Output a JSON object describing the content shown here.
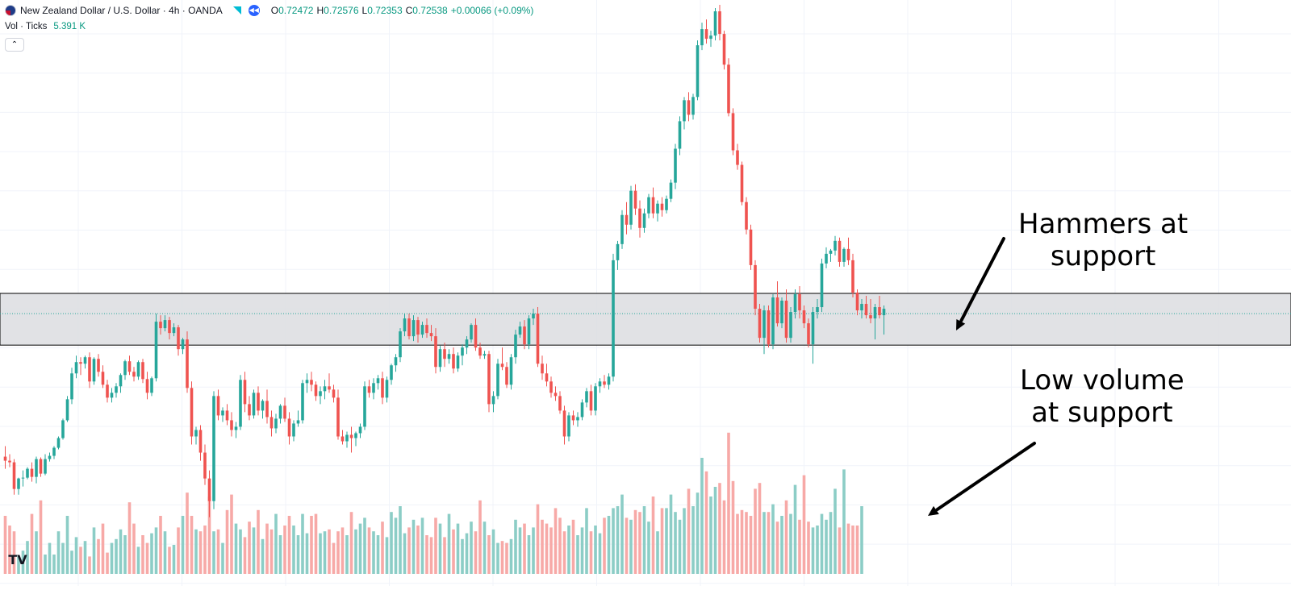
{
  "header": {
    "symbol": "New Zealand Dollar / U.S. Dollar · 4h · OANDA",
    "ohlc": [
      {
        "k": "O",
        "v": "0.72472"
      },
      {
        "k": "H",
        "v": "0.72576"
      },
      {
        "k": "L",
        "v": "0.72353"
      },
      {
        "k": "C",
        "v": "0.72538"
      }
    ],
    "change": "+0.00066 (+0.09%)",
    "volume_label": "Vol · Ticks",
    "volume_value": "5.391 K",
    "collapse_glyph": "⌃",
    "logo_text": "TV"
  },
  "annotations": {
    "hammers": [
      "Hammers at",
      "support"
    ],
    "low_volume": [
      "Low volume",
      "at support"
    ]
  },
  "colors": {
    "up": "#26a69a",
    "down": "#ef5350",
    "volume_up": "#8ccdc6",
    "volume_down": "#f7a9a7",
    "zone_fill": "#dcdde0",
    "grid": "#f0f3fa"
  },
  "chart_data": {
    "type": "candlestick",
    "title": "New Zealand Dollar / U.S. Dollar · 4h · OANDA",
    "support_zone": [
      0.7163,
      0.7227
    ],
    "support_midline": 0.7202,
    "ylim": [
      0.6865,
      0.759
    ],
    "candles": [
      [
        0.7025,
        0.7038,
        0.701,
        0.702
      ],
      [
        0.702,
        0.7028,
        0.7012,
        0.7018
      ],
      [
        0.7018,
        0.7022,
        0.6978,
        0.6985
      ],
      [
        0.6985,
        0.6999,
        0.6978,
        0.6998
      ],
      [
        0.6998,
        0.7008,
        0.6988,
        0.6999
      ],
      [
        0.6999,
        0.7012,
        0.6997,
        0.701
      ],
      [
        0.701,
        0.7018,
        0.6994,
        0.7
      ],
      [
        0.7,
        0.7025,
        0.6992,
        0.7022
      ],
      [
        0.7022,
        0.7024,
        0.7,
        0.7004
      ],
      [
        0.7004,
        0.7028,
        0.7002,
        0.7022
      ],
      [
        0.7022,
        0.703,
        0.7019,
        0.7026
      ],
      [
        0.7026,
        0.7038,
        0.7022,
        0.7036
      ],
      [
        0.7036,
        0.705,
        0.7034,
        0.7048
      ],
      [
        0.7048,
        0.7072,
        0.7046,
        0.707
      ],
      [
        0.707,
        0.71,
        0.7068,
        0.7096
      ],
      [
        0.7096,
        0.7135,
        0.709,
        0.7128
      ],
      [
        0.7128,
        0.715,
        0.7122,
        0.7142
      ],
      [
        0.7142,
        0.7148,
        0.7126,
        0.714
      ],
      [
        0.714,
        0.715,
        0.7134,
        0.7148
      ],
      [
        0.7148,
        0.7154,
        0.711,
        0.7118
      ],
      [
        0.7118,
        0.7148,
        0.7114,
        0.7146
      ],
      [
        0.7146,
        0.7152,
        0.7124,
        0.713
      ],
      [
        0.713,
        0.7138,
        0.711,
        0.7114
      ],
      [
        0.7114,
        0.712,
        0.7092,
        0.7098
      ],
      [
        0.7098,
        0.711,
        0.7092,
        0.7104
      ],
      [
        0.7104,
        0.7116,
        0.7098,
        0.7112
      ],
      [
        0.7112,
        0.7128,
        0.7104,
        0.7126
      ],
      [
        0.7126,
        0.7145,
        0.712,
        0.7143
      ],
      [
        0.7143,
        0.715,
        0.7126,
        0.713
      ],
      [
        0.713,
        0.7136,
        0.7118,
        0.7124
      ],
      [
        0.7124,
        0.7144,
        0.712,
        0.7142
      ],
      [
        0.7142,
        0.7146,
        0.7116,
        0.7121
      ],
      [
        0.7121,
        0.713,
        0.7096,
        0.7104
      ],
      [
        0.7104,
        0.7124,
        0.71,
        0.7122
      ],
      [
        0.7122,
        0.7202,
        0.7118,
        0.7192
      ],
      [
        0.7192,
        0.72,
        0.7176,
        0.7184
      ],
      [
        0.7184,
        0.72,
        0.718,
        0.7194
      ],
      [
        0.7194,
        0.7198,
        0.717,
        0.7178
      ],
      [
        0.7178,
        0.719,
        0.7174,
        0.7185
      ],
      [
        0.7185,
        0.7188,
        0.715,
        0.7158
      ],
      [
        0.7158,
        0.7172,
        0.7152,
        0.717
      ],
      [
        0.717,
        0.718,
        0.7104,
        0.711
      ],
      [
        0.711,
        0.7118,
        0.704,
        0.705
      ],
      [
        0.705,
        0.7062,
        0.704,
        0.7058
      ],
      [
        0.7058,
        0.7064,
        0.702,
        0.703
      ],
      [
        0.703,
        0.704,
        0.699,
        0.6998
      ],
      [
        0.6998,
        0.7008,
        0.695,
        0.697
      ],
      [
        0.697,
        0.7106,
        0.696,
        0.71
      ],
      [
        0.71,
        0.7108,
        0.707,
        0.7076
      ],
      [
        0.7076,
        0.7086,
        0.7068,
        0.7082
      ],
      [
        0.7082,
        0.709,
        0.7064,
        0.707
      ],
      [
        0.707,
        0.708,
        0.705,
        0.7058
      ],
      [
        0.7058,
        0.7068,
        0.7048,
        0.7062
      ],
      [
        0.7062,
        0.7126,
        0.7058,
        0.712
      ],
      [
        0.712,
        0.713,
        0.708,
        0.709
      ],
      [
        0.709,
        0.71,
        0.707,
        0.7076
      ],
      [
        0.7076,
        0.7108,
        0.7072,
        0.7104
      ],
      [
        0.7104,
        0.7112,
        0.7076,
        0.7082
      ],
      [
        0.7082,
        0.7096,
        0.7072,
        0.7094
      ],
      [
        0.7094,
        0.7108,
        0.7066,
        0.7074
      ],
      [
        0.7074,
        0.7082,
        0.705,
        0.706
      ],
      [
        0.706,
        0.7078,
        0.7054,
        0.7072
      ],
      [
        0.7072,
        0.709,
        0.7066,
        0.7088
      ],
      [
        0.7088,
        0.7098,
        0.7068,
        0.7072
      ],
      [
        0.7072,
        0.708,
        0.704,
        0.705
      ],
      [
        0.705,
        0.707,
        0.7044,
        0.7066
      ],
      [
        0.7066,
        0.7082,
        0.7062,
        0.707
      ],
      [
        0.707,
        0.712,
        0.7066,
        0.7116
      ],
      [
        0.7116,
        0.7128,
        0.7104,
        0.712
      ],
      [
        0.712,
        0.713,
        0.7106,
        0.7114
      ],
      [
        0.7114,
        0.7118,
        0.7094,
        0.71
      ],
      [
        0.71,
        0.7112,
        0.709,
        0.7106
      ],
      [
        0.7106,
        0.712,
        0.7096,
        0.7112
      ],
      [
        0.7112,
        0.7128,
        0.7104,
        0.7108
      ],
      [
        0.7108,
        0.7114,
        0.7092,
        0.7098
      ],
      [
        0.7098,
        0.7108,
        0.7046,
        0.705
      ],
      [
        0.705,
        0.7058,
        0.704,
        0.7044
      ],
      [
        0.7044,
        0.7056,
        0.7036,
        0.7052
      ],
      [
        0.7052,
        0.7062,
        0.703,
        0.7048
      ],
      [
        0.7048,
        0.7056,
        0.7038,
        0.7054
      ],
      [
        0.7054,
        0.7066,
        0.7048,
        0.7062
      ],
      [
        0.7062,
        0.7118,
        0.7058,
        0.7112
      ],
      [
        0.7112,
        0.712,
        0.7098,
        0.7104
      ],
      [
        0.7104,
        0.7122,
        0.7096,
        0.7116
      ],
      [
        0.7116,
        0.7126,
        0.7108,
        0.7122
      ],
      [
        0.7122,
        0.713,
        0.709,
        0.7098
      ],
      [
        0.7098,
        0.7124,
        0.7092,
        0.712
      ],
      [
        0.712,
        0.714,
        0.7114,
        0.7138
      ],
      [
        0.7138,
        0.7152,
        0.713,
        0.7148
      ],
      [
        0.7148,
        0.7184,
        0.7142,
        0.718
      ],
      [
        0.718,
        0.7202,
        0.7174,
        0.7196
      ],
      [
        0.7196,
        0.7202,
        0.717,
        0.7174
      ],
      [
        0.7174,
        0.72,
        0.7168,
        0.7194
      ],
      [
        0.7194,
        0.7198,
        0.7166,
        0.7176
      ],
      [
        0.7176,
        0.7192,
        0.7172,
        0.7188
      ],
      [
        0.7188,
        0.7196,
        0.7172,
        0.7178
      ],
      [
        0.7178,
        0.7188,
        0.7168,
        0.7174
      ],
      [
        0.7174,
        0.7184,
        0.7128,
        0.7136
      ],
      [
        0.7136,
        0.7162,
        0.713,
        0.7158
      ],
      [
        0.7158,
        0.7166,
        0.7136,
        0.7146
      ],
      [
        0.7146,
        0.7158,
        0.714,
        0.7152
      ],
      [
        0.7152,
        0.716,
        0.7128,
        0.7134
      ],
      [
        0.7134,
        0.7154,
        0.713,
        0.715
      ],
      [
        0.715,
        0.7164,
        0.7138,
        0.716
      ],
      [
        0.716,
        0.7174,
        0.7152,
        0.717
      ],
      [
        0.717,
        0.719,
        0.7166,
        0.7188
      ],
      [
        0.7188,
        0.7196,
        0.7156,
        0.716
      ],
      [
        0.716,
        0.7166,
        0.7146,
        0.715
      ],
      [
        0.715,
        0.7156,
        0.7146,
        0.7152
      ],
      [
        0.7152,
        0.7156,
        0.708,
        0.709
      ],
      [
        0.709,
        0.7106,
        0.708,
        0.71
      ],
      [
        0.71,
        0.7146,
        0.7096,
        0.714
      ],
      [
        0.714,
        0.716,
        0.7132,
        0.7136
      ],
      [
        0.7136,
        0.7142,
        0.711,
        0.7114
      ],
      [
        0.7114,
        0.7152,
        0.7108,
        0.7148
      ],
      [
        0.7148,
        0.7182,
        0.714,
        0.7176
      ],
      [
        0.7176,
        0.7192,
        0.7172,
        0.7186
      ],
      [
        0.7186,
        0.7194,
        0.7158,
        0.7164
      ],
      [
        0.7164,
        0.72,
        0.7158,
        0.7196
      ],
      [
        0.7196,
        0.7208,
        0.7188,
        0.7202
      ],
      [
        0.7202,
        0.721,
        0.7136,
        0.714
      ],
      [
        0.714,
        0.715,
        0.712,
        0.7128
      ],
      [
        0.7128,
        0.714,
        0.7112,
        0.7118
      ],
      [
        0.7118,
        0.7124,
        0.7098,
        0.7104
      ],
      [
        0.7104,
        0.7112,
        0.7094,
        0.71
      ],
      [
        0.71,
        0.7106,
        0.7078,
        0.7082
      ],
      [
        0.7082,
        0.7088,
        0.704,
        0.705
      ],
      [
        0.705,
        0.708,
        0.7044,
        0.7076
      ],
      [
        0.7076,
        0.7082,
        0.7064,
        0.707
      ],
      [
        0.707,
        0.708,
        0.7062,
        0.7074
      ],
      [
        0.7074,
        0.7096,
        0.707,
        0.7092
      ],
      [
        0.7092,
        0.711,
        0.7086,
        0.7106
      ],
      [
        0.7106,
        0.7114,
        0.7076,
        0.7082
      ],
      [
        0.7082,
        0.7116,
        0.7076,
        0.7112
      ],
      [
        0.7112,
        0.7122,
        0.7104,
        0.7118
      ],
      [
        0.7118,
        0.7126,
        0.711,
        0.7114
      ],
      [
        0.7114,
        0.7128,
        0.7108,
        0.7124
      ],
      [
        0.7124,
        0.7276,
        0.7118,
        0.7268
      ],
      [
        0.7268,
        0.7292,
        0.7256,
        0.7288
      ],
      [
        0.7288,
        0.733,
        0.7282,
        0.7324
      ],
      [
        0.7324,
        0.734,
        0.73,
        0.7312
      ],
      [
        0.7312,
        0.736,
        0.7306,
        0.7354
      ],
      [
        0.7354,
        0.7362,
        0.7324,
        0.7332
      ],
      [
        0.7332,
        0.7342,
        0.7296,
        0.7308
      ],
      [
        0.7308,
        0.7332,
        0.7302,
        0.7326
      ],
      [
        0.7326,
        0.735,
        0.732,
        0.7346
      ],
      [
        0.7346,
        0.7358,
        0.732,
        0.7326
      ],
      [
        0.7326,
        0.7342,
        0.7316,
        0.7338
      ],
      [
        0.7338,
        0.7346,
        0.7322,
        0.733
      ],
      [
        0.733,
        0.7348,
        0.7326,
        0.7344
      ],
      [
        0.7344,
        0.7368,
        0.734,
        0.7364
      ],
      [
        0.7364,
        0.7412,
        0.7356,
        0.7406
      ],
      [
        0.7406,
        0.7446,
        0.7398,
        0.744
      ],
      [
        0.744,
        0.747,
        0.743,
        0.7466
      ],
      [
        0.7466,
        0.7476,
        0.744,
        0.7448
      ],
      [
        0.7448,
        0.7474,
        0.7442,
        0.747
      ],
      [
        0.747,
        0.754,
        0.7466,
        0.7534
      ],
      [
        0.7534,
        0.7562,
        0.7528,
        0.7554
      ],
      [
        0.7554,
        0.7566,
        0.7536,
        0.7542
      ],
      [
        0.7542,
        0.7552,
        0.7532,
        0.7546
      ],
      [
        0.7546,
        0.758,
        0.754,
        0.7576
      ],
      [
        0.7576,
        0.7584,
        0.754,
        0.7548
      ],
      [
        0.7548,
        0.7552,
        0.7504,
        0.751
      ],
      [
        0.751,
        0.7518,
        0.7446,
        0.745
      ],
      [
        0.745,
        0.7456,
        0.7398,
        0.7404
      ],
      [
        0.7404,
        0.7412,
        0.738,
        0.7386
      ],
      [
        0.7386,
        0.739,
        0.7336,
        0.734
      ],
      [
        0.734,
        0.7346,
        0.73,
        0.7306
      ],
      [
        0.7306,
        0.7312,
        0.7256,
        0.7262
      ],
      [
        0.7262,
        0.7268,
        0.72,
        0.7208
      ],
      [
        0.7208,
        0.7214,
        0.7166,
        0.7172
      ],
      [
        0.7172,
        0.7212,
        0.7152,
        0.7206
      ],
      [
        0.7206,
        0.7212,
        0.716,
        0.7164
      ],
      [
        0.7164,
        0.7226,
        0.7158,
        0.7222
      ],
      [
        0.7222,
        0.7242,
        0.7186,
        0.719
      ],
      [
        0.719,
        0.7222,
        0.7184,
        0.7218
      ],
      [
        0.7218,
        0.7232,
        0.7166,
        0.7172
      ],
      [
        0.7172,
        0.721,
        0.7166,
        0.7204
      ],
      [
        0.7204,
        0.7232,
        0.7196,
        0.7226
      ],
      [
        0.7226,
        0.7236,
        0.7196,
        0.7206
      ],
      [
        0.7206,
        0.7212,
        0.7184,
        0.719
      ],
      [
        0.719,
        0.7196,
        0.716,
        0.7164
      ],
      [
        0.7164,
        0.721,
        0.714,
        0.7204
      ],
      [
        0.7204,
        0.722,
        0.7196,
        0.721
      ],
      [
        0.721,
        0.727,
        0.7204,
        0.7264
      ],
      [
        0.7264,
        0.7284,
        0.7258,
        0.7276
      ],
      [
        0.7276,
        0.7282,
        0.7266,
        0.728
      ],
      [
        0.728,
        0.7298,
        0.7274,
        0.7292
      ],
      [
        0.7292,
        0.7296,
        0.726,
        0.7266
      ],
      [
        0.7266,
        0.7284,
        0.726,
        0.7282
      ],
      [
        0.7282,
        0.7296,
        0.7262,
        0.7268
      ],
      [
        0.7268,
        0.7276,
        0.7222,
        0.7228
      ],
      [
        0.7228,
        0.7232,
        0.72,
        0.7206
      ],
      [
        0.7206,
        0.722,
        0.7196,
        0.7214
      ],
      [
        0.7214,
        0.7224,
        0.7196,
        0.72
      ],
      [
        0.72,
        0.722,
        0.719,
        0.7196
      ],
      [
        0.7196,
        0.7214,
        0.717,
        0.721
      ],
      [
        0.721,
        0.7224,
        0.7196,
        0.72
      ],
      [
        0.72,
        0.7212,
        0.7176,
        0.7208
      ]
    ],
    "volume_ticks": [
      3.0,
      2.5,
      2.2,
      0.9,
      1.2,
      1.7,
      3.1,
      2.2,
      3.8,
      1.0,
      1.6,
      1.0,
      2.2,
      1.6,
      3.0,
      1.2,
      1.9,
      1.4,
      1.7,
      0.9,
      2.4,
      1.8,
      2.6,
      1.1,
      1.6,
      1.8,
      2.3,
      2.0,
      3.7,
      2.6,
      1.4,
      2.0,
      1.6,
      2.1,
      2.4,
      3.0,
      2.2,
      1.4,
      1.5,
      2.4,
      3.0,
      4.2,
      3.0,
      2.3,
      2.2,
      2.5,
      4.0,
      2.2,
      2.3,
      1.6,
      3.3,
      4.1,
      2.6,
      2.3,
      1.9,
      2.7,
      2.4,
      3.3,
      1.8,
      2.6,
      2.3,
      3.1,
      2.0,
      2.5,
      3.0,
      2.5,
      2.0,
      3.1,
      2.1,
      3.0,
      3.1,
      2.1,
      2.2,
      2.3,
      1.6,
      2.2,
      2.4,
      2.0,
      3.2,
      2.3,
      2.6,
      2.9,
      2.4,
      2.2,
      2.0,
      2.7,
      1.9,
      3.2,
      2.9,
      3.5,
      2.1,
      2.4,
      2.8,
      2.5,
      2.9,
      2.0,
      1.9,
      2.9,
      2.6,
      1.9,
      3.1,
      2.3,
      2.6,
      1.8,
      2.1,
      2.7,
      2.2,
      3.8,
      2.7,
      2.0,
      2.3,
      1.6,
      1.7,
      1.6,
      1.8,
      2.8,
      2.4,
      2.6,
      2.0,
      2.4,
      3.6,
      2.8,
      2.6,
      2.4,
      3.4,
      2.9,
      2.2,
      2.5,
      2.8,
      2.0,
      2.4,
      3.4,
      2.2,
      2.5,
      2.1,
      2.9,
      3.0,
      3.4,
      3.5,
      4.1,
      2.9,
      2.8,
      3.3,
      3.2,
      3.5,
      2.7,
      4.0,
      2.2,
      3.4,
      3.4,
      4.1,
      3.2,
      2.8,
      3.4,
      4.4,
      3.5,
      4.2,
      6.0,
      5.3,
      4.0,
      4.5,
      4.7,
      3.8,
      7.3,
      4.8,
      3.1,
      3.3,
      3.2,
      3.0,
      4.4,
      4.7,
      3.2,
      3.2,
      3.6,
      2.7,
      3.0,
      3.8,
      3.1,
      4.6,
      2.8,
      5.1,
      2.7,
      2.4,
      2.5,
      3.1,
      2.8,
      3.2,
      4.4,
      2.4,
      5.4,
      2.6,
      2.5,
      2.5,
      3.5
    ]
  }
}
